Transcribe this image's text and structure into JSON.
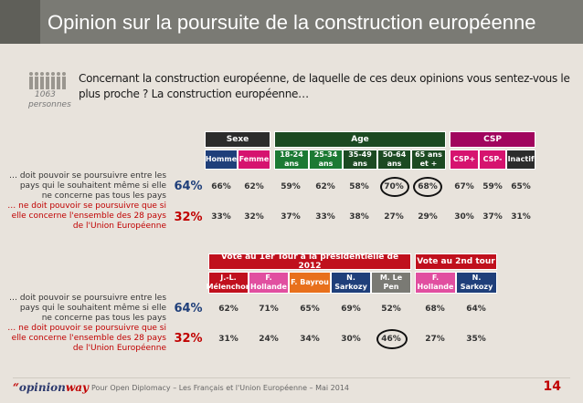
{
  "header": {
    "title": "Opinion sur la poursuite de la construction européenne"
  },
  "question": "Concernant la construction européenne, de laquelle de ces deux opinions vous sentez-vous le plus proche ? La construction européenne…",
  "sample": {
    "n": "1063",
    "label": "personnes"
  },
  "rows": [
    {
      "label": "… doit pouvoir se poursuivre entre les pays qui le souhaitent même si elle ne concerne pas tous les pays",
      "total": "64%",
      "color": "#1f3f7a"
    },
    {
      "label": "… ne doit pouvoir se poursuivre que si elle concerne l'ensemble des 28 pays de l'Union Européenne",
      "total": "32%",
      "color": "#c00000"
    }
  ],
  "table1": {
    "groups": [
      {
        "label": "Sexe",
        "color": "#2c2c2c"
      },
      {
        "label": "Age",
        "color": "#1c4a22"
      },
      {
        "label": "CSP",
        "color": "#a1055e"
      }
    ],
    "columns": [
      {
        "label": "Homme",
        "color": "#1f3f7a"
      },
      {
        "label": "Femme",
        "color": "#d6136f"
      },
      {
        "label": "18-24 ans",
        "color": "#1c7a34"
      },
      {
        "label": "25-34 ans",
        "color": "#1c7a34"
      },
      {
        "label": "35-49 ans",
        "color": "#1c4a22"
      },
      {
        "label": "50-64 ans",
        "color": "#1c4a22"
      },
      {
        "label": "65 ans et +",
        "color": "#1c4a22"
      },
      {
        "label": "CSP+",
        "color": "#d6136f"
      },
      {
        "label": "CSP-",
        "color": "#d6136f"
      },
      {
        "label": "Inactif",
        "color": "#2c2c2c"
      }
    ],
    "row1": [
      "66%",
      "62%",
      "59%",
      "62%",
      "58%",
      "70%",
      "68%",
      "67%",
      "59%",
      "65%"
    ],
    "row2": [
      "33%",
      "32%",
      "37%",
      "33%",
      "38%",
      "27%",
      "29%",
      "30%",
      "37%",
      "31%"
    ]
  },
  "table2": {
    "groups": [
      {
        "label": "Vote au 1er Tour à la présidentielle de 2012",
        "color": "#c0101d"
      },
      {
        "label": "Vote au 2nd tour",
        "color": "#c0101d"
      }
    ],
    "columns": [
      {
        "label": "J.-L. Mélenchon",
        "color": "#c0101d"
      },
      {
        "label": "F. Hollande",
        "color": "#e14fa0"
      },
      {
        "label": "F. Bayrou",
        "color": "#e8701c"
      },
      {
        "label": "N. Sarkozy",
        "color": "#1f3f7a"
      },
      {
        "label": "M. Le Pen",
        "color": "#7a7a74"
      },
      {
        "label": "F. Hollande",
        "color": "#e14fa0"
      },
      {
        "label": "N. Sarkozy",
        "color": "#1f3f7a"
      }
    ],
    "row1": [
      "62%",
      "71%",
      "65%",
      "69%",
      "52%",
      "68%",
      "64%"
    ],
    "row2": [
      "31%",
      "24%",
      "34%",
      "30%",
      "46%",
      "27%",
      "35%"
    ]
  },
  "footer": {
    "logo_left": "opinion",
    "logo_right": "way",
    "text": "Pour Open Diplomacy – Les Français et l'Union Européenne – Mai 2014",
    "page": "14"
  },
  "chart_data": {
    "type": "table",
    "series": [
      {
        "name": "… doit pouvoir se poursuivre entre les pays qui le souhaitent même si elle ne concerne pas tous les pays",
        "total": 64
      },
      {
        "name": "… ne doit pouvoir se poursuivre que si elle concerne l'ensemble des 28 pays de l'Union Européenne",
        "total": 32
      }
    ]
  }
}
